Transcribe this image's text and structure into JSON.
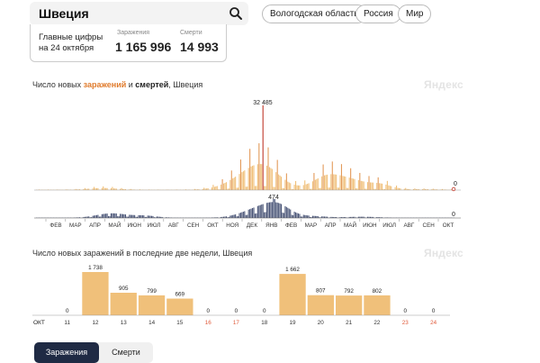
{
  "search": {
    "query": "Швеция"
  },
  "regions": [
    "Вологодская область",
    "Россия",
    "Мир"
  ],
  "key_figures": {
    "label": "Главные цифры на 24 октября",
    "cases_caption": "Заражения",
    "cases_value": "1 165 996",
    "deaths_caption": "Смерти",
    "deaths_value": "14 993"
  },
  "brand": "Яндекс",
  "main_chart": {
    "title_prefix": "Число новых ",
    "title_cases": "заражений",
    "title_and": " и ",
    "title_deaths": "смертей",
    "title_suffix": ", Швеция",
    "peak_cases_label": "32 485",
    "last_cases_label": "0",
    "peak_deaths_label": "474",
    "last_deaths_label": "0"
  },
  "chart_data": [
    {
      "type": "bar",
      "title": "Число новых заражений и смертей, Швеция",
      "x_labels": [
        "ФЕВ",
        "МАР",
        "АПР",
        "МАЙ",
        "ИЮН",
        "ИЮЛ",
        "АВГ",
        "СЕН",
        "ОКТ",
        "НОЯ",
        "ДЕК",
        "ЯНВ",
        "ФЕВ",
        "МАР",
        "АПР",
        "МАЙ",
        "ИЮН",
        "ИЮЛ",
        "АВГ",
        "СЕН",
        "ОКТ"
      ],
      "series": [
        {
          "name": "заражений",
          "color": "#f0c07a",
          "peak_value": 32485,
          "last_value": 0
        },
        {
          "name": "смертей",
          "color": "#4a5577",
          "peak_value": 474,
          "last_value": 0
        }
      ]
    },
    {
      "type": "bar",
      "title": "Число новых заражений в последние две недели, Швеция",
      "month_label": "ОКТ",
      "categories": [
        "11",
        "12",
        "13",
        "14",
        "15",
        "16",
        "17",
        "18",
        "19",
        "20",
        "21",
        "22",
        "23",
        "24"
      ],
      "weekend": [
        false,
        false,
        false,
        false,
        false,
        true,
        true,
        false,
        false,
        false,
        false,
        false,
        true,
        true
      ],
      "values": [
        0,
        1738,
        905,
        799,
        669,
        0,
        0,
        0,
        1662,
        807,
        792,
        802,
        0,
        0
      ],
      "value_labels": [
        "0",
        "1 738",
        "905",
        "799",
        "669",
        "0",
        "0",
        "0",
        "1 662",
        "807",
        "792",
        "802",
        "0",
        "0"
      ],
      "bar_color": "#f0c07a",
      "weekend_color": "#e05a3a"
    }
  ],
  "tabs": {
    "active": "Заражения",
    "inactive": "Смерти"
  }
}
